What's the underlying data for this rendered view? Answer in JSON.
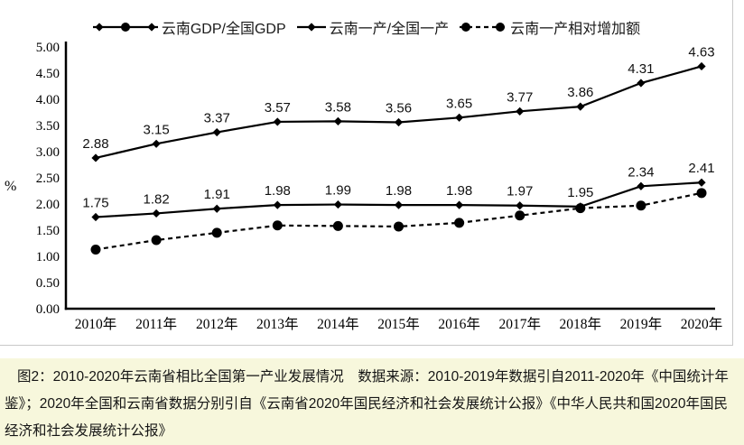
{
  "page": {
    "background_color": "#f7f7dc",
    "panel_color": "#ffffff",
    "border_color": "#c9c9c9"
  },
  "chart_data": {
    "type": "line",
    "title": "",
    "xlabel": "",
    "ylabel": "%",
    "ylim": [
      0,
      5
    ],
    "ytick_step": 0.5,
    "grid": false,
    "legend_position": "top",
    "line_color": "#000000",
    "categories": [
      "2010年",
      "2011年",
      "2012年",
      "2013年",
      "2014年",
      "2015年",
      "2016年",
      "2017年",
      "2018年",
      "2019年",
      "2020年"
    ],
    "series": [
      {
        "name": "云南GDP/全国GDP",
        "values": [
          1.75,
          1.82,
          1.91,
          1.98,
          1.99,
          1.98,
          1.98,
          1.97,
          1.95,
          2.34,
          2.41
        ],
        "marker": "diamond",
        "line_style": "solid",
        "data_labels": true,
        "legend_key": "solid-diamond-circle-diamond"
      },
      {
        "name": "云南一产/全国一产",
        "values": [
          2.88,
          3.15,
          3.37,
          3.57,
          3.58,
          3.56,
          3.65,
          3.77,
          3.86,
          4.31,
          4.63
        ],
        "marker": "diamond",
        "line_style": "solid",
        "data_labels": true,
        "legend_key": "solid-diamond"
      },
      {
        "name": "云南一产相对增加额",
        "values": [
          1.13,
          1.31,
          1.45,
          1.59,
          1.58,
          1.57,
          1.64,
          1.78,
          1.92,
          1.97,
          2.21
        ],
        "marker": "circle",
        "line_style": "dashed",
        "data_labels": false,
        "legend_key": "dashed-circle-circle"
      }
    ]
  },
  "caption": {
    "text": "图2：2010-2020年云南省相比全国第一产业发展情况　数据来源：2010-2019年数据引自2011-2020年《中国统计年鉴》；2020年全国和云南省数据分别引自《云南省2020年国民经济和社会发展统计公报》《中华人民共和国2020年国民经济和社会发展统计公报》"
  }
}
